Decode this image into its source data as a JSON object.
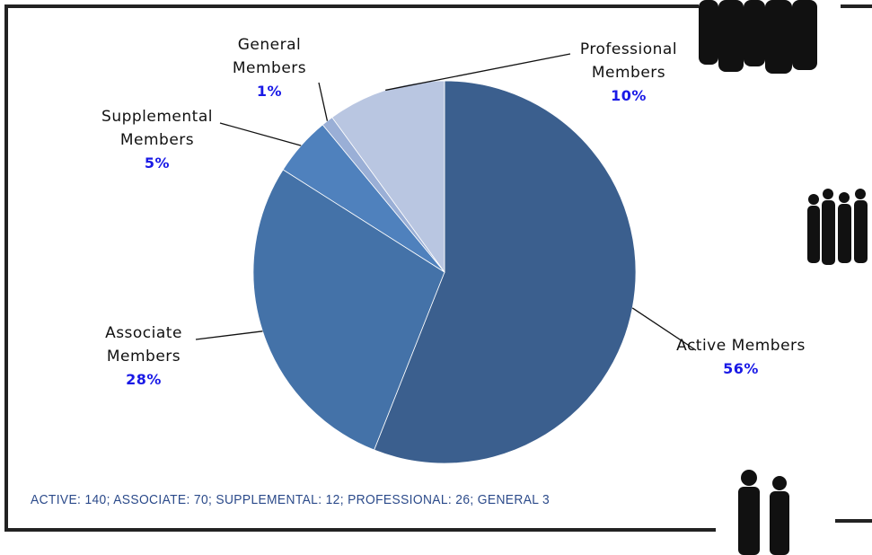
{
  "chart_data": {
    "type": "pie",
    "categories": [
      "Active Members",
      "Associate Members",
      "Supplemental Members",
      "General Members",
      "Professional Members"
    ],
    "values": [
      56,
      28,
      5,
      1,
      10
    ],
    "value_labels": [
      "56%",
      "28%",
      "5%",
      "1%",
      "10%"
    ],
    "colors": [
      "#3b5f8e",
      "#4472a8",
      "#4f81bd",
      "#9aafd6",
      "#b9c6e1"
    ],
    "note": "ACTIVE: 140; ASSOCIATE: 70; SUPPLEMENTAL: 12; PROFESSIONAL: 26; GENERAL 3"
  }
}
